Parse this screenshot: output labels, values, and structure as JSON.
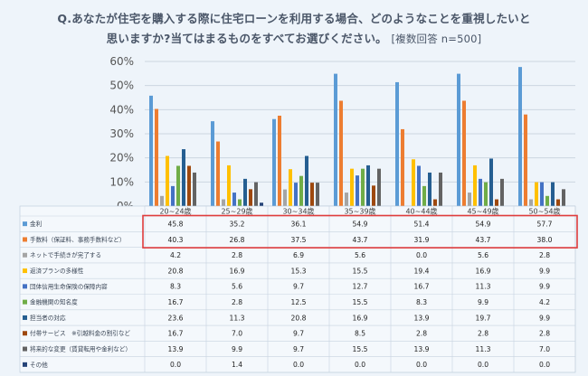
{
  "title_line1": "Q.あなたが住宅を購入する際に住宅ローンを利用する場合、どのようなことを重視したいと",
  "title_line2": "思いますか?当てはまるものをすべてお選びください。",
  "title_note": "[複数回答 n=500]",
  "colors": {
    "background": "#eef4fa",
    "highlight_box": "#e03c3c",
    "grid": "#ccd6e0"
  },
  "chart_data": {
    "type": "bar",
    "categories": [
      "20~24歳",
      "25~29歳",
      "30~34歳",
      "35~39歳",
      "40~44歳",
      "45~49歳",
      "50~54歳"
    ],
    "ylim": [
      0,
      60
    ],
    "yticks": [
      "0%",
      "10%",
      "20%",
      "30%",
      "40%",
      "50%",
      "60%"
    ],
    "highlighted_series": [
      "金利",
      "手数料（保証料、事務手数料など）"
    ],
    "series": [
      {
        "name": "金利",
        "color": "#5b9bd5",
        "values": [
          45.8,
          35.2,
          36.1,
          54.9,
          51.4,
          54.9,
          57.7
        ],
        "labels": [
          "45.8",
          "35.2",
          "36.1",
          "54.9",
          "51.4",
          "54.9",
          "57.7"
        ]
      },
      {
        "name": "手数料（保証料、事務手数料など）",
        "color": "#ed7d31",
        "values": [
          40.3,
          26.8,
          37.5,
          43.7,
          31.9,
          43.7,
          38.0
        ],
        "labels": [
          "40.3",
          "26.8",
          "37.5",
          "43.7",
          "31.9",
          "43.7",
          "38.0"
        ]
      },
      {
        "name": "ネットで手続きが完了する",
        "color": "#a5a5a5",
        "values": [
          4.2,
          2.8,
          6.9,
          5.6,
          0.0,
          5.6,
          2.8
        ],
        "labels": [
          "4.2",
          "2.8",
          "6.9",
          "5.6",
          "0.0",
          "5.6",
          "2.8"
        ]
      },
      {
        "name": "返済プランの多様性",
        "color": "#ffc000",
        "values": [
          20.8,
          16.9,
          15.3,
          15.5,
          19.4,
          16.9,
          9.9
        ],
        "labels": [
          "20.8",
          "16.9",
          "15.3",
          "15.5",
          "19.4",
          "16.9",
          "9.9"
        ]
      },
      {
        "name": "団体信用生命保険の保障内容",
        "color": "#4472c4",
        "values": [
          8.3,
          5.6,
          9.7,
          12.7,
          16.7,
          11.3,
          9.9
        ],
        "labels": [
          "8.3",
          "5.6",
          "9.7",
          "12.7",
          "16.7",
          "11.3",
          "9.9"
        ]
      },
      {
        "name": "金融機関の知名度",
        "color": "#70ad47",
        "values": [
          16.7,
          2.8,
          12.5,
          15.5,
          8.3,
          9.9,
          4.2
        ],
        "labels": [
          "16.7",
          "2.8",
          "12.5",
          "15.5",
          "8.3",
          "9.9",
          "4.2"
        ]
      },
      {
        "name": "担当者の対応",
        "color": "#255e91",
        "values": [
          23.6,
          11.3,
          20.8,
          16.9,
          13.9,
          19.7,
          9.9
        ],
        "labels": [
          "23.6",
          "11.3",
          "20.8",
          "16.9",
          "13.9",
          "19.7",
          "9.9"
        ]
      },
      {
        "name": "付帯サービス　※引越料金の割引など",
        "color": "#9e480e",
        "values": [
          16.7,
          7.0,
          9.7,
          8.5,
          2.8,
          2.8,
          2.8
        ],
        "labels": [
          "16.7",
          "7.0",
          "9.7",
          "8.5",
          "2.8",
          "2.8",
          "2.8"
        ]
      },
      {
        "name": "将来的な変更（賃貸転用や金利など）",
        "color": "#636363",
        "values": [
          13.9,
          9.9,
          9.7,
          15.5,
          13.9,
          11.3,
          7.0
        ],
        "labels": [
          "13.9",
          "9.9",
          "9.7",
          "15.5",
          "13.9",
          "11.3",
          "7.0"
        ]
      },
      {
        "name": "その他",
        "color": "#264478",
        "values": [
          0.0,
          1.4,
          0.0,
          0.0,
          0.0,
          0.0,
          0.0
        ],
        "labels": [
          "0.0",
          "1.4",
          "0.0",
          "0.0",
          "0.0",
          "0.0",
          "0.0"
        ]
      }
    ]
  }
}
